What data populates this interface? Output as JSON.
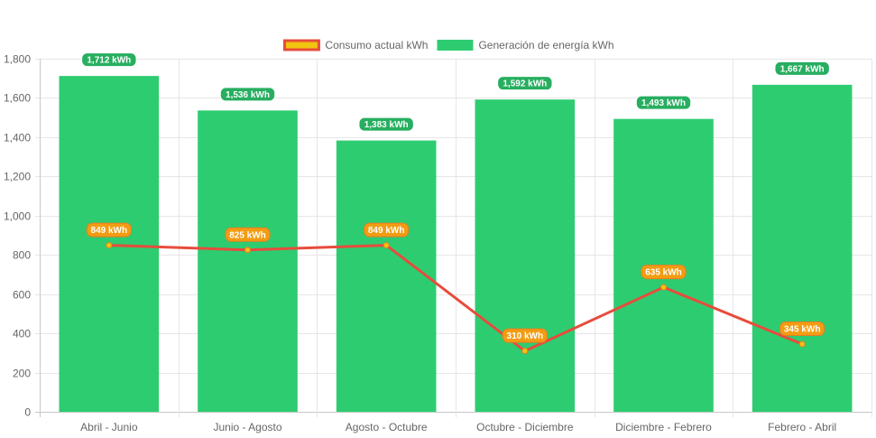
{
  "chart_data": {
    "type": "bar",
    "categories": [
      "Abril - Junio",
      "Junio - Agosto",
      "Agosto - Octubre",
      "Octubre - Diciembre",
      "Diciembre - Febrero",
      "Febrero - Abril"
    ],
    "series": [
      {
        "name": "Generación de energía kWh",
        "type": "bar",
        "values": [
          1712,
          1536,
          1383,
          1592,
          1493,
          1667
        ],
        "labels": [
          "1,712 kWh",
          "1,536 kWh",
          "1,383 kWh",
          "1,592 kWh",
          "1,493 kWh",
          "1,667 kWh"
        ],
        "color": "#2ecc71"
      },
      {
        "name": "Consumo actual kWh",
        "type": "line",
        "values": [
          849,
          825,
          849,
          310,
          635,
          345
        ],
        "labels": [
          "849 kWh",
          "825 kWh",
          "849 kWh",
          "310 kWh",
          "635 kWh",
          "345 kWh"
        ],
        "color": "#e74c3c",
        "point_color": "#f1c40f"
      }
    ],
    "legend_order": [
      "Consumo actual kWh",
      "Generación de energía kWh"
    ],
    "legend_position": "top",
    "ylim": [
      0,
      1800
    ],
    "yticks": [
      0,
      200,
      400,
      600,
      800,
      1000,
      1200,
      1400,
      1600,
      1800
    ],
    "ytick_labels": [
      "0",
      "200",
      "400",
      "600",
      "800",
      "1,000",
      "1,200",
      "1,400",
      "1,600",
      "1,800"
    ],
    "grid": true
  }
}
